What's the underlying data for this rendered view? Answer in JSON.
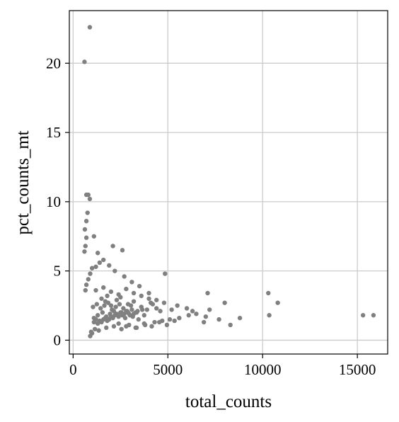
{
  "chart_data": {
    "type": "scatter",
    "title": "",
    "xlabel": "total_counts",
    "ylabel": "pct_counts_mt",
    "xlim": [
      -200,
      16600
    ],
    "ylim": [
      -1.0,
      23.8
    ],
    "xticks": [
      0,
      5000,
      10000,
      15000
    ],
    "xtick_labels": [
      "0",
      "5000",
      "10000",
      "15000"
    ],
    "yticks": [
      0,
      5,
      10,
      15,
      20
    ],
    "ytick_labels": [
      "0",
      "5",
      "10",
      "15",
      "20"
    ],
    "grid": true,
    "legend": "none",
    "point_color": "#808080",
    "series": [
      {
        "x": [
          880,
          600,
          700,
          800,
          880,
          760,
          700,
          620,
          700,
          650,
          600,
          1300,
          2600,
          2100,
          1100,
          4850,
          7100,
          10300,
          10800,
          10350,
          7200,
          8000,
          8800,
          15300,
          15850,
          7000,
          5200,
          4200,
          4000,
          3500,
          3100,
          2700,
          2200,
          1900,
          1600,
          1400,
          1200,
          1000,
          900,
          800,
          700,
          650,
          2400,
          2800,
          3300,
          3800,
          4300,
          4700,
          5100,
          5600,
          6100,
          6500,
          6900,
          7700,
          8300,
          1500,
          1700,
          1800,
          2000,
          2300,
          2500,
          2900,
          3200,
          3600,
          3900,
          4100,
          4400,
          4600,
          1100,
          1300,
          1550,
          1750,
          1950,
          2150,
          2350,
          2550,
          2750,
          2950,
          3150,
          3450,
          3750,
          1050,
          1250,
          1450,
          1650,
          1850,
          2050,
          2250,
          2450,
          2650,
          2850,
          3050,
          3350,
          3650,
          950,
          1150,
          1350,
          1750,
          2150,
          2550,
          2950,
          3350,
          3750,
          4150,
          4550,
          4950,
          5350,
          1200,
          1600,
          2000,
          2400,
          2800,
          3200,
          3600,
          4000,
          4400,
          4800,
          5500,
          6000,
          6300,
          900,
          1000,
          1100,
          1200,
          1300,
          1400,
          1500,
          1600,
          1700,
          1800,
          1900,
          2000,
          2100,
          2200,
          2300,
          2400,
          2500,
          2600,
          2700,
          2800,
          2900,
          3000,
          3100,
          3200,
          3300,
          3400
        ],
        "y": [
          22.6,
          20.1,
          10.5,
          10.5,
          10.2,
          9.2,
          8.6,
          8.0,
          7.4,
          6.8,
          6.4,
          6.3,
          6.5,
          6.8,
          7.5,
          4.8,
          3.4,
          3.4,
          2.7,
          1.8,
          2.2,
          2.7,
          1.6,
          1.8,
          1.8,
          1.7,
          2.2,
          2.6,
          3.4,
          3.9,
          4.2,
          4.6,
          5.0,
          5.4,
          5.8,
          5.6,
          5.3,
          5.2,
          4.8,
          4.4,
          4.0,
          3.6,
          1.2,
          1.0,
          0.9,
          1.1,
          1.3,
          1.4,
          1.5,
          1.6,
          1.8,
          1.9,
          1.3,
          1.5,
          1.1,
          3.0,
          2.8,
          3.2,
          2.5,
          2.9,
          3.1,
          2.6,
          2.8,
          2.4,
          2.2,
          2.7,
          2.3,
          2.1,
          1.6,
          1.8,
          2.0,
          1.7,
          1.9,
          2.1,
          1.8,
          2.0,
          1.6,
          1.9,
          1.7,
          1.5,
          1.8,
          2.4,
          2.6,
          2.3,
          2.5,
          2.7,
          2.2,
          2.4,
          2.6,
          2.3,
          2.1,
          2.5,
          2.0,
          2.2,
          0.6,
          0.8,
          0.7,
          0.9,
          1.0,
          0.8,
          1.1,
          0.9,
          1.2,
          1.0,
          1.3,
          1.1,
          1.4,
          3.6,
          3.8,
          3.5,
          3.3,
          3.7,
          3.4,
          3.2,
          3.0,
          2.9,
          2.7,
          2.5,
          2.3,
          2.1,
          0.3,
          0.5,
          1.3,
          1.5,
          1.2,
          1.4,
          1.3,
          1.5,
          1.6,
          1.4,
          1.5,
          1.7,
          1.6,
          1.8,
          1.9,
          1.7,
          2.0,
          1.8,
          1.9,
          2.1,
          2.0,
          1.8,
          2.2,
          1.9,
          2.0,
          2.1
        ]
      }
    ]
  }
}
